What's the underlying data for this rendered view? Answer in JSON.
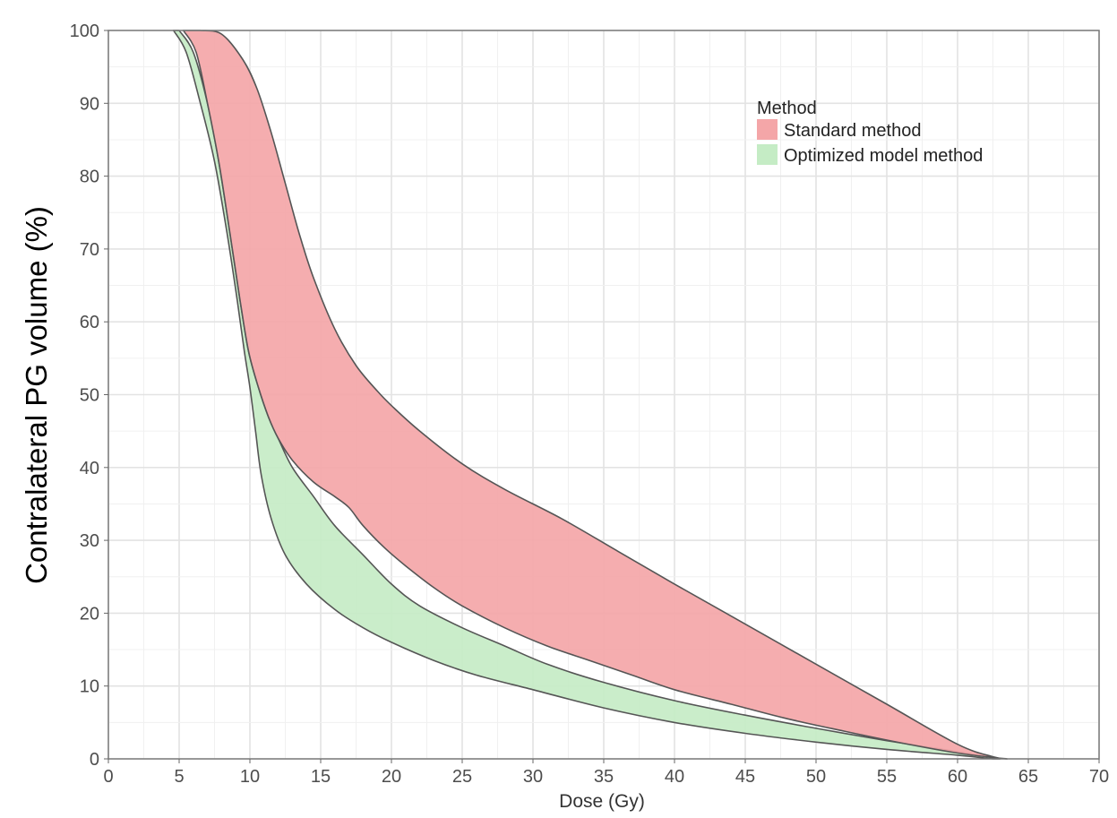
{
  "chart_data": {
    "type": "area",
    "xlabel": "Dose (Gy)",
    "ylabel": "Contralateral PG volume (%)",
    "xlim": [
      0,
      70
    ],
    "ylim": [
      0,
      100
    ],
    "xticks": [
      0,
      5,
      10,
      15,
      20,
      25,
      30,
      35,
      40,
      45,
      50,
      55,
      60,
      65,
      70
    ],
    "yticks": [
      0,
      10,
      20,
      30,
      40,
      50,
      60,
      70,
      80,
      90,
      100
    ],
    "grid": true,
    "legend": {
      "title": "Method",
      "position": "top-right"
    },
    "series": [
      {
        "name": "Standard method",
        "color": "#f4a6a8",
        "upper": [
          [
            6.5,
            100
          ],
          [
            8,
            99.5
          ],
          [
            9.5,
            96
          ],
          [
            10.5,
            92
          ],
          [
            11.5,
            86
          ],
          [
            12.5,
            79
          ],
          [
            13.5,
            72
          ],
          [
            14.5,
            66
          ],
          [
            16,
            59
          ],
          [
            17.5,
            54
          ],
          [
            19,
            50.5
          ],
          [
            20,
            48.5
          ],
          [
            22,
            45
          ],
          [
            25,
            40.5
          ],
          [
            28,
            37
          ],
          [
            32,
            33
          ],
          [
            36,
            28.5
          ],
          [
            40,
            24
          ],
          [
            45,
            18.5
          ],
          [
            50,
            13
          ],
          [
            55,
            7.5
          ],
          [
            60,
            2
          ],
          [
            62.5,
            0.3
          ],
          [
            63.5,
            0
          ]
        ],
        "lower": [
          [
            5.3,
            100
          ],
          [
            6.2,
            97
          ],
          [
            7,
            90
          ],
          [
            7.8,
            82
          ],
          [
            8.6,
            72
          ],
          [
            9.3,
            63
          ],
          [
            9.9,
            56
          ],
          [
            10.6,
            51
          ],
          [
            11.3,
            47
          ],
          [
            12,
            44
          ],
          [
            13,
            41
          ],
          [
            14.5,
            38
          ],
          [
            16,
            36
          ],
          [
            17,
            34.5
          ],
          [
            18,
            32
          ],
          [
            19.5,
            29
          ],
          [
            21,
            26.5
          ],
          [
            23,
            23.5
          ],
          [
            25,
            21
          ],
          [
            28,
            18
          ],
          [
            31,
            15.5
          ],
          [
            34,
            13.5
          ],
          [
            37,
            11.5
          ],
          [
            40,
            9.5
          ],
          [
            44,
            7.5
          ],
          [
            48,
            5.5
          ],
          [
            52,
            3.8
          ],
          [
            56,
            2.2
          ],
          [
            60,
            0.8
          ],
          [
            62.5,
            0.2
          ],
          [
            63.5,
            0
          ]
        ]
      },
      {
        "name": "Optimized model method",
        "color": "#c5ecc5",
        "upper": [
          [
            5,
            100
          ],
          [
            6,
            97
          ],
          [
            7,
            90
          ],
          [
            7.8,
            82
          ],
          [
            8.6,
            72
          ],
          [
            9.3,
            63
          ],
          [
            9.9,
            56
          ],
          [
            10.6,
            51
          ],
          [
            11.3,
            47
          ],
          [
            12,
            44
          ],
          [
            13,
            40
          ],
          [
            14.5,
            36
          ],
          [
            16,
            32
          ],
          [
            18,
            28
          ],
          [
            20,
            24
          ],
          [
            22,
            21
          ],
          [
            25,
            18
          ],
          [
            28,
            15.5
          ],
          [
            31,
            13
          ],
          [
            35,
            10.5
          ],
          [
            40,
            8
          ],
          [
            45,
            6
          ],
          [
            50,
            4.2
          ],
          [
            55,
            2.5
          ],
          [
            60,
            1
          ],
          [
            63,
            0
          ]
        ],
        "lower": [
          [
            4.6,
            100
          ],
          [
            5.5,
            97
          ],
          [
            6.5,
            90
          ],
          [
            7.5,
            82
          ],
          [
            8.4,
            72
          ],
          [
            9.1,
            63
          ],
          [
            9.6,
            56
          ],
          [
            10,
            51
          ],
          [
            10.4,
            45
          ],
          [
            10.8,
            39
          ],
          [
            11.5,
            33
          ],
          [
            12.5,
            28
          ],
          [
            14,
            24
          ],
          [
            16,
            20.5
          ],
          [
            18,
            18
          ],
          [
            20,
            16
          ],
          [
            23,
            13.5
          ],
          [
            26,
            11.5
          ],
          [
            30,
            9.5
          ],
          [
            35,
            7
          ],
          [
            40,
            5
          ],
          [
            45,
            3.5
          ],
          [
            50,
            2.3
          ],
          [
            55,
            1.3
          ],
          [
            60,
            0.5
          ],
          [
            62.5,
            0
          ]
        ]
      }
    ]
  }
}
